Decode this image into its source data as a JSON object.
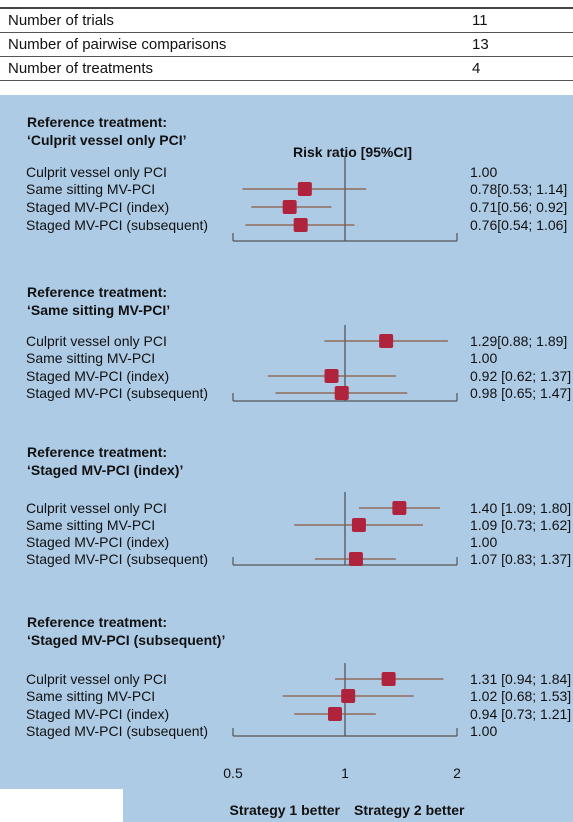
{
  "summary_rows": [
    {
      "label": "Number of trials",
      "value": "11"
    },
    {
      "label": "Number of pairwise comparisons",
      "value": "13"
    },
    {
      "label": "Number of treatments",
      "value": "4"
    }
  ],
  "chart_data": {
    "type": "forest",
    "column_header": "Risk ratio [95%CI]",
    "x_ticks": [
      "0.5",
      "1",
      "2"
    ],
    "xlim": [
      0.5,
      2
    ],
    "x_scale": "log",
    "reference_line": 1,
    "x_direction_labels": [
      "Strategy 1 better",
      "Strategy 2 better"
    ],
    "colors": {
      "marker": "#b0233c",
      "ci_line": "#8a5a3c",
      "panel_bg": "#aecbe6"
    },
    "panels": [
      {
        "title_line1": "Reference treatment:",
        "title_line2": "‘Culprit vessel only PCI’",
        "rows": [
          {
            "label": "Culprit vessel only PCI",
            "text": "1.00",
            "rr": null,
            "lo": null,
            "hi": null
          },
          {
            "label": "Same sitting MV-PCI",
            "text": "0.78[0.53; 1.14]",
            "rr": 0.78,
            "lo": 0.53,
            "hi": 1.14
          },
          {
            "label": "Staged MV-PCI (index)",
            "text": "0.71[0.56; 0.92]",
            "rr": 0.71,
            "lo": 0.56,
            "hi": 0.92
          },
          {
            "label": "Staged MV-PCI (subsequent)",
            "text": "0.76[0.54; 1.06]",
            "rr": 0.76,
            "lo": 0.54,
            "hi": 1.06
          }
        ]
      },
      {
        "title_line1": "Reference treatment:",
        "title_line2": "‘Same sitting MV-PCI’",
        "rows": [
          {
            "label": "Culprit vessel only PCI",
            "text": "1.29[0.88; 1.89]",
            "rr": 1.29,
            "lo": 0.88,
            "hi": 1.89
          },
          {
            "label": "Same sitting MV-PCI",
            "text": "1.00",
            "rr": null,
            "lo": null,
            "hi": null
          },
          {
            "label": "Staged MV-PCI (index)",
            "text": "0.92 [0.62; 1.37]",
            "rr": 0.92,
            "lo": 0.62,
            "hi": 1.37
          },
          {
            "label": "Staged MV-PCI (subsequent)",
            "text": "0.98 [0.65; 1.47]",
            "rr": 0.98,
            "lo": 0.65,
            "hi": 1.47
          }
        ]
      },
      {
        "title_line1": "Reference treatment:",
        "title_line2": "‘Staged MV-PCI (index)’",
        "rows": [
          {
            "label": "Culprit vessel only PCI",
            "text": "1.40 [1.09; 1.80]",
            "rr": 1.4,
            "lo": 1.09,
            "hi": 1.8
          },
          {
            "label": "Same sitting MV-PCI",
            "text": "1.09 [0.73; 1.62]",
            "rr": 1.09,
            "lo": 0.73,
            "hi": 1.62
          },
          {
            "label": "Staged MV-PCI (index)",
            "text": "1.00",
            "rr": null,
            "lo": null,
            "hi": null
          },
          {
            "label": "Staged MV-PCI (subsequent)",
            "text": "1.07 [0.83; 1.37]",
            "rr": 1.07,
            "lo": 0.83,
            "hi": 1.37
          }
        ]
      },
      {
        "title_line1": "Reference treatment:",
        "title_line2": "‘Staged MV-PCI (subsequent)’",
        "rows": [
          {
            "label": "Culprit vessel only PCI",
            "text": "1.31 [0.94; 1.84]",
            "rr": 1.31,
            "lo": 0.94,
            "hi": 1.84
          },
          {
            "label": "Same sitting MV-PCI",
            "text": "1.02 [0.68; 1.53]",
            "rr": 1.02,
            "lo": 0.68,
            "hi": 1.53
          },
          {
            "label": "Staged MV-PCI (index)",
            "text": "0.94 [0.73; 1.21]",
            "rr": 0.94,
            "lo": 0.73,
            "hi": 1.21
          },
          {
            "label": "Staged MV-PCI (subsequent)",
            "text": "1.00",
            "rr": null,
            "lo": null,
            "hi": null
          }
        ]
      }
    ]
  }
}
